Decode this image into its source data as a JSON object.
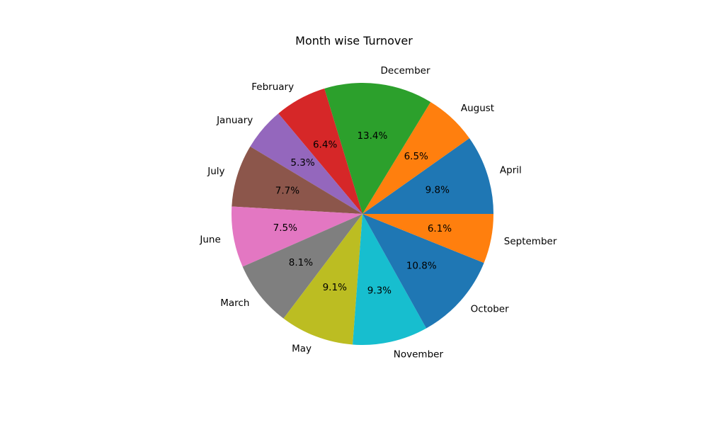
{
  "chart_data": {
    "type": "pie",
    "title": "Month wise Turnover",
    "start_angle_deg": 0,
    "direction": "counterclockwise",
    "slices": [
      {
        "label": "April",
        "percent": 9.8,
        "pct_text": "9.8%",
        "color": "#1f77b4"
      },
      {
        "label": "August",
        "percent": 6.5,
        "pct_text": "6.5%",
        "color": "#ff7f0e"
      },
      {
        "label": "December",
        "percent": 13.4,
        "pct_text": "13.4%",
        "color": "#2ca02c"
      },
      {
        "label": "February",
        "percent": 6.4,
        "pct_text": "6.4%",
        "color": "#d62728"
      },
      {
        "label": "January",
        "percent": 5.3,
        "pct_text": "5.3%",
        "color": "#9467bd"
      },
      {
        "label": "July",
        "percent": 7.7,
        "pct_text": "7.7%",
        "color": "#8c564b"
      },
      {
        "label": "June",
        "percent": 7.5,
        "pct_text": "7.5%",
        "color": "#e377c2"
      },
      {
        "label": "March",
        "percent": 8.1,
        "pct_text": "8.1%",
        "color": "#7f7f7f"
      },
      {
        "label": "May",
        "percent": 9.1,
        "pct_text": "9.1%",
        "color": "#bcbd22"
      },
      {
        "label": "November",
        "percent": 9.3,
        "pct_text": "9.3%",
        "color": "#17becf"
      },
      {
        "label": "October",
        "percent": 10.8,
        "pct_text": "10.8%",
        "color": "#1f77b4"
      },
      {
        "label": "September",
        "percent": 6.1,
        "pct_text": "6.1%",
        "color": "#ff7f0e"
      }
    ]
  }
}
